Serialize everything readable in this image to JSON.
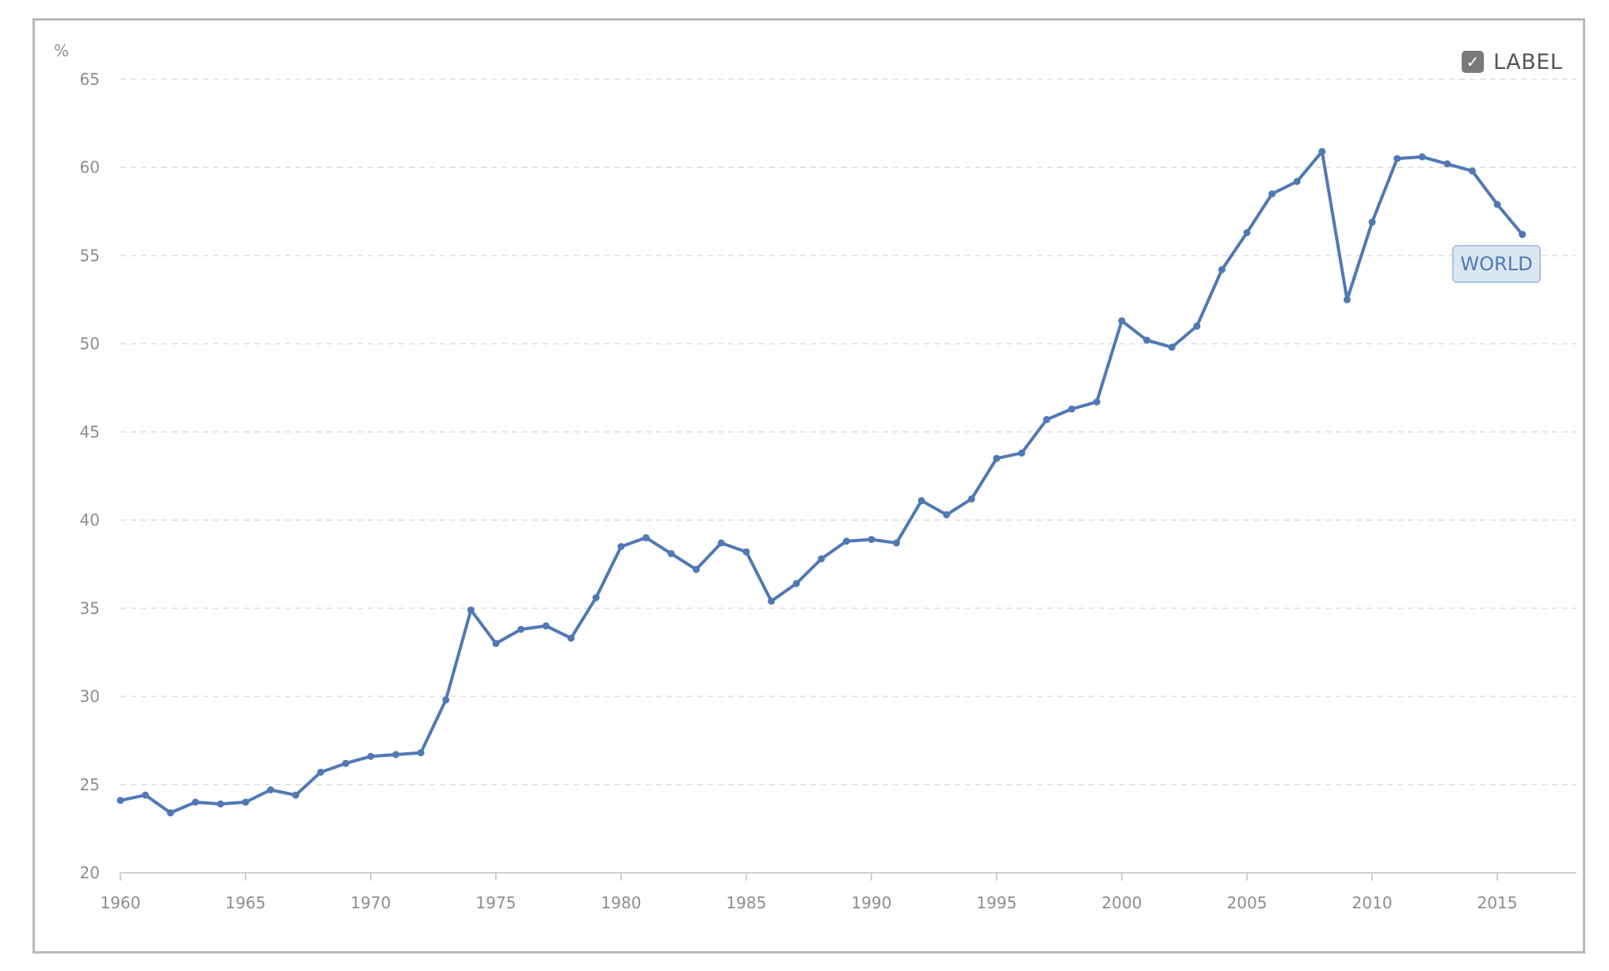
{
  "toggle": {
    "label": "LABEL",
    "checked": true,
    "check_icon": "checkmark-icon"
  },
  "colors": {
    "line": "#4f79b4",
    "grid": "#dddddd",
    "axis": "#cfcfcf",
    "text": "#8d8d8d",
    "label_bg": "#dbe6f3",
    "label_border": "#a9c3e3"
  },
  "chart_data": {
    "type": "line",
    "title": "",
    "xlabel": "",
    "ylabel": "%",
    "x_ticks": [
      "1960",
      "1965",
      "1970",
      "1975",
      "1980",
      "1985",
      "1990",
      "1995",
      "2000",
      "2005",
      "2010",
      "2015"
    ],
    "y_ticks": [
      "20",
      "25",
      "30",
      "35",
      "40",
      "45",
      "50",
      "55",
      "60",
      "65"
    ],
    "xlim": [
      1960,
      2018
    ],
    "ylim": [
      20,
      65
    ],
    "grid": true,
    "legend": "none",
    "series": [
      {
        "name": "WORLD",
        "x": [
          1960,
          1961,
          1962,
          1963,
          1964,
          1965,
          1966,
          1967,
          1968,
          1969,
          1970,
          1971,
          1972,
          1973,
          1974,
          1975,
          1976,
          1977,
          1978,
          1979,
          1980,
          1981,
          1982,
          1983,
          1984,
          1985,
          1986,
          1987,
          1988,
          1989,
          1990,
          1991,
          1992,
          1993,
          1994,
          1995,
          1996,
          1997,
          1998,
          1999,
          2000,
          2001,
          2002,
          2003,
          2004,
          2005,
          2006,
          2007,
          2008,
          2009,
          2010,
          2011,
          2012,
          2013,
          2014,
          2015,
          2016
        ],
        "values": [
          24.1,
          24.4,
          23.4,
          24.0,
          23.9,
          24.0,
          24.7,
          24.4,
          25.7,
          26.2,
          26.6,
          26.7,
          26.8,
          29.8,
          34.9,
          33.0,
          33.8,
          34.0,
          33.3,
          35.6,
          38.5,
          39.0,
          38.1,
          37.2,
          38.7,
          38.2,
          35.4,
          36.4,
          37.8,
          38.8,
          38.9,
          38.7,
          41.1,
          40.3,
          41.2,
          43.5,
          43.8,
          45.7,
          46.3,
          46.7,
          51.3,
          50.2,
          49.8,
          51.0,
          54.2,
          56.3,
          58.5,
          59.2,
          60.9,
          52.5,
          56.9,
          60.5,
          60.6,
          60.2,
          59.8,
          57.9,
          56.2
        ]
      }
    ]
  }
}
